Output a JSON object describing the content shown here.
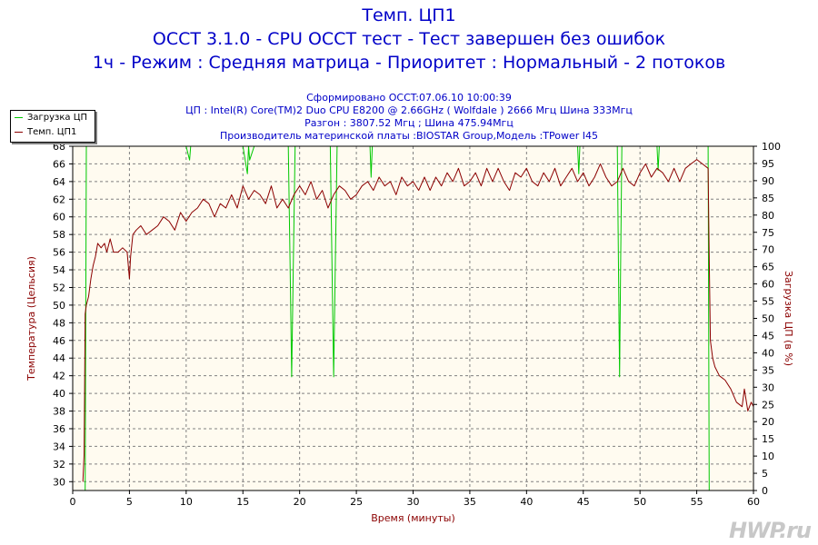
{
  "header": {
    "title": "Темп. ЦП1",
    "subtitle": "OCCT 3.1.0 - CPU OCCT тест - Тест завершен без ошибок",
    "mode": "1ч - Режим : Средняя матрица - Приоритет : Нормальный - 2 потоков",
    "generated": "Сформировано OCCT:07.06.10 10:00:39",
    "cpu": "ЦП : Intel(R) Core(TM)2 Duo CPU E8200 @ 2.66GHz ( Wolfdale ) 2666 Мгц Шина 333Mгц",
    "overclock": "Разгон : 3807.52 Мгц ; Шина 475.94Мгц",
    "motherboard": "Производитель материнской платы :BIOSTAR Group,Модель :TPower I45"
  },
  "legend": {
    "items": [
      {
        "label": "Загрузка ЦП",
        "color": "#00c800"
      },
      {
        "label": "Темп. ЦП1",
        "color": "#8b0000"
      }
    ]
  },
  "watermark": "HWP.ru",
  "chart_data": {
    "type": "line",
    "xlabel": "Время (минуты)",
    "ylabel_left": "Температура (Цельсия)",
    "ylabel_right": "Загрузка ЦП (в %)",
    "xlim": [
      0,
      60
    ],
    "ylim_left": [
      29,
      68
    ],
    "ylim_right": [
      0,
      100
    ],
    "x_ticks": [
      0,
      5,
      10,
      15,
      20,
      25,
      30,
      35,
      40,
      45,
      50,
      55,
      60
    ],
    "y_left_ticks": [
      30,
      32,
      34,
      36,
      38,
      40,
      42,
      44,
      46,
      48,
      50,
      52,
      54,
      56,
      58,
      60,
      62,
      64,
      66,
      68
    ],
    "y_right_ticks": [
      0,
      5,
      10,
      15,
      20,
      25,
      30,
      35,
      40,
      45,
      50,
      55,
      60,
      65,
      70,
      75,
      80,
      85,
      90,
      95,
      100
    ],
    "grid": true,
    "plot_background": "#fffbf0",
    "series": [
      {
        "name": "Темп. ЦП1",
        "axis": "left",
        "color": "#8b0000",
        "x": [
          0.9,
          1.0,
          1.05,
          1.1,
          1.2,
          1.4,
          1.6,
          1.8,
          2.0,
          2.2,
          2.5,
          2.8,
          3.0,
          3.3,
          3.6,
          4.0,
          4.4,
          4.8,
          5.0,
          5.1,
          5.3,
          5.6,
          6.0,
          6.5,
          7.0,
          7.5,
          8.0,
          8.5,
          9.0,
          9.5,
          10.0,
          10.5,
          11.0,
          11.5,
          12.0,
          12.5,
          13.0,
          13.5,
          14.0,
          14.5,
          15.0,
          15.5,
          16.0,
          16.5,
          17.0,
          17.5,
          18.0,
          18.5,
          19.0,
          19.5,
          20.0,
          20.5,
          21.0,
          21.5,
          22.0,
          22.5,
          23.0,
          23.5,
          24.0,
          24.5,
          25.0,
          25.5,
          26.0,
          26.5,
          27.0,
          27.5,
          28.0,
          28.5,
          29.0,
          29.5,
          30.0,
          30.5,
          31.0,
          31.5,
          32.0,
          32.5,
          33.0,
          33.5,
          34.0,
          34.5,
          35.0,
          35.5,
          36.0,
          36.5,
          37.0,
          37.5,
          38.0,
          38.5,
          39.0,
          39.5,
          40.0,
          40.5,
          41.0,
          41.5,
          42.0,
          42.5,
          43.0,
          43.5,
          44.0,
          44.5,
          45.0,
          45.5,
          46.0,
          46.5,
          47.0,
          47.5,
          48.0,
          48.5,
          49.0,
          49.5,
          50.0,
          50.5,
          51.0,
          51.5,
          52.0,
          52.5,
          53.0,
          53.5,
          54.0,
          54.5,
          55.0,
          55.5,
          56.0,
          56.1,
          56.2,
          56.4,
          56.6,
          57.0,
          57.5,
          58.0,
          58.5,
          59.0,
          59.2,
          59.5,
          59.8,
          60.0
        ],
        "values": [
          30.0,
          33.0,
          40.5,
          49.0,
          50.0,
          51.0,
          53.0,
          54.5,
          55.5,
          57.0,
          56.5,
          57.0,
          56.0,
          57.5,
          56.0,
          56.0,
          56.5,
          56.0,
          53.0,
          55.5,
          58.0,
          58.5,
          59.0,
          58.0,
          58.5,
          59.0,
          60.0,
          59.5,
          58.5,
          60.5,
          59.5,
          60.5,
          61.0,
          62.0,
          61.5,
          60.0,
          61.5,
          61.0,
          62.5,
          61.0,
          63.5,
          62.0,
          63.0,
          62.5,
          61.5,
          63.5,
          61.0,
          62.0,
          61.0,
          62.5,
          63.5,
          62.5,
          64.0,
          62.0,
          63.0,
          61.0,
          62.5,
          63.5,
          63.0,
          62.0,
          62.5,
          63.5,
          64.0,
          63.0,
          64.5,
          63.5,
          64.0,
          62.5,
          64.5,
          63.5,
          64.0,
          63.0,
          64.5,
          63.0,
          64.5,
          63.5,
          65.0,
          64.0,
          65.5,
          63.5,
          64.0,
          65.0,
          63.5,
          65.5,
          64.0,
          65.5,
          64.0,
          63.0,
          65.0,
          64.5,
          65.5,
          64.0,
          63.5,
          65.0,
          64.0,
          65.5,
          63.5,
          64.5,
          65.5,
          64.0,
          65.0,
          63.5,
          64.5,
          66.0,
          64.5,
          63.5,
          64.0,
          65.5,
          64.0,
          63.5,
          65.0,
          66.0,
          64.5,
          65.5,
          65.0,
          64.0,
          65.5,
          64.0,
          65.5,
          66.0,
          66.5,
          66.0,
          65.5,
          55.5,
          46.0,
          44.0,
          43.0,
          42.0,
          41.5,
          40.5,
          39.0,
          38.5,
          40.5,
          38.0,
          39.0,
          38.5
        ]
      },
      {
        "name": "Загрузка ЦП",
        "axis": "right",
        "color": "#00c800",
        "x": [
          0.9,
          1.1,
          1.2,
          2.0,
          10.0,
          10.3,
          10.4,
          15.0,
          15.4,
          15.5,
          15.6,
          16.0,
          19.0,
          19.15,
          19.3,
          19.45,
          19.6,
          22.7,
          22.85,
          23.0,
          23.15,
          23.3,
          26.2,
          26.3,
          26.4,
          44.5,
          44.6,
          44.7,
          48.0,
          48.1,
          48.2,
          48.3,
          48.4,
          51.5,
          51.6,
          51.7,
          56.0,
          56.1,
          56.2,
          60.0
        ],
        "values": [
          0,
          0,
          100,
          100,
          100,
          96,
          100,
          100,
          92,
          100,
          96,
          100,
          100,
          67,
          33,
          67,
          100,
          100,
          67,
          33,
          67,
          100,
          100,
          91,
          100,
          100,
          92,
          100,
          100,
          67,
          33,
          67,
          100,
          100,
          93,
          100,
          100,
          0,
          0,
          0
        ]
      }
    ]
  }
}
